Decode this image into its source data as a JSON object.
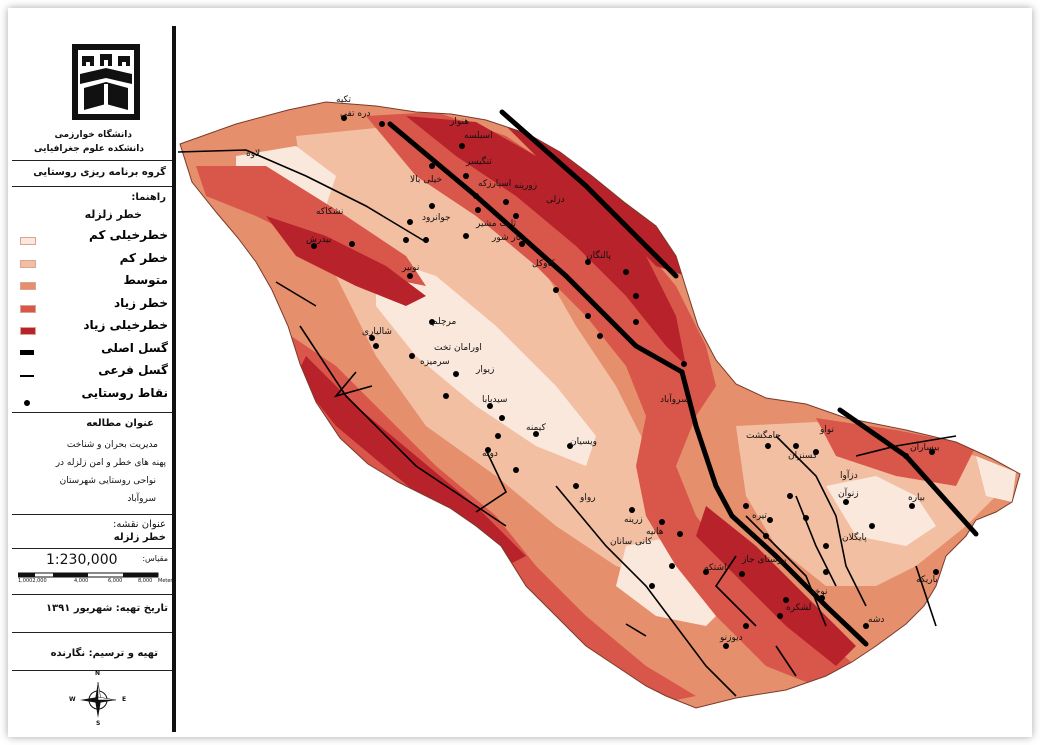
{
  "sidebar": {
    "university": "دانشگاه خوارزمی",
    "faculty": "دانشکده علوم جغرافیایی",
    "department": "گروه برنامه ریزی روستایی",
    "legend_heading": "راهنما:",
    "legend_subheading": "خطر زلزله",
    "legend_items": [
      {
        "label": "خطرخیلی کم",
        "color": "#fbe8dc",
        "kind": "fill"
      },
      {
        "label": "خطر کم",
        "color": "#f3bfa3",
        "kind": "fill"
      },
      {
        "label": "متوسط",
        "color": "#e58f6d",
        "kind": "fill"
      },
      {
        "label": "خطر  زیاد",
        "color": "#d9564a",
        "kind": "fill"
      },
      {
        "label": "خطرخیلی زیاد",
        "color": "#b8222a",
        "kind": "fill"
      },
      {
        "label": "گسل اصلی",
        "color": "#000000",
        "kind": "line-thick"
      },
      {
        "label": "گسل فرعی",
        "color": "#000000",
        "kind": "line-thin"
      },
      {
        "label": "نقاط روستایی",
        "color": "#000000",
        "kind": "dot"
      }
    ],
    "study_title_heading": "عنوان مطالعه",
    "study_title_lines": [
      "مدیریت بحران و شناخت",
      "پهنه های خطر و امن زلزله در",
      "نواحی روستایی شهرستان",
      "سروآباد"
    ],
    "map_title_heading": "عنوان نقشه:",
    "map_title": "خطر زلزله",
    "scale_heading": "مقیاس:",
    "scale_value": "1:230,000",
    "scale_ticks": [
      "1,0002,000",
      "4,000",
      "6,000",
      "8,000"
    ],
    "scale_unit": "Meters",
    "date_text": "تاریخ تهیه: شهریور ۱۳۹۱",
    "author_text": "تهیه و ترسیم: نگارنده",
    "north_arrow": {
      "n": "N",
      "s": "S",
      "e": "E",
      "w": "W"
    }
  },
  "map": {
    "village_labels": [
      "تکیه",
      "دره تفی",
      "هنوار",
      "اسبلسه",
      "تنگیسر",
      "لاوه",
      "خیلی بالا",
      "زورینه",
      "دزلی",
      "اسپارزکه",
      "ثابت مشیر",
      "نار شور",
      "جوانرود",
      "نشکاکه",
      "بیدرش",
      "نوبیر",
      "کاوکل",
      "پالنگان",
      "مرچلم",
      "اورامان تخت",
      "سرمیزه",
      "زیوار",
      "سیدبابا",
      "شالیاری",
      "کیمنه",
      "ویسیان",
      "رواو",
      "سروآباد",
      "زرینه",
      "کانی سانان",
      "هانیه",
      "دوله",
      "جامگشت",
      "نواو",
      "کسنزان",
      "تیره",
      "دزآوا",
      "بیسارآن",
      "زنوآن",
      "بیاره",
      "روستای جاز",
      "نوخه",
      "اشتکه",
      "دیوزنو",
      "پایگلان",
      "لشکره",
      "باریکه",
      "دشه"
    ],
    "colors": {
      "very_low": "#fbe8dc",
      "low": "#f3bfa3",
      "medium": "#e58f6d",
      "high": "#d9564a",
      "very_high": "#b8222a",
      "fault": "#000000"
    }
  }
}
